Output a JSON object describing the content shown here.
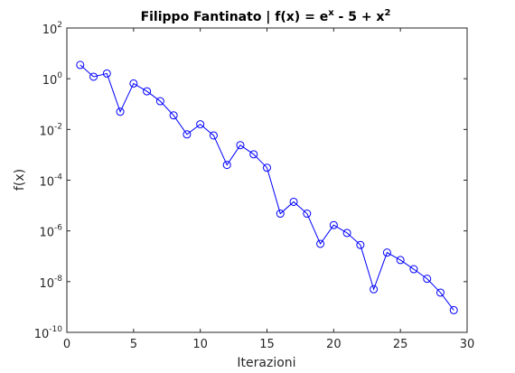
{
  "chart_data": {
    "type": "line",
    "title": {
      "prefix": "Filippo Fantinato | f(x) = e",
      "exp1": "x",
      "middle": " - 5 + x",
      "exp2": "2"
    },
    "xlabel": "Iterazioni",
    "ylabel": "f(x)",
    "xlim": [
      0,
      30
    ],
    "ylim": [
      1e-10,
      100
    ],
    "yscale": "log",
    "grid": false,
    "legend": "none",
    "x_ticks": [
      {
        "value": 0,
        "label": "0"
      },
      {
        "value": 5,
        "label": "5"
      },
      {
        "value": 10,
        "label": "10"
      },
      {
        "value": 15,
        "label": "15"
      },
      {
        "value": 20,
        "label": "20"
      },
      {
        "value": 25,
        "label": "25"
      },
      {
        "value": 30,
        "label": "30"
      }
    ],
    "y_ticks": [
      {
        "value": 100,
        "base": "10",
        "exp": "2"
      },
      {
        "value": 1,
        "base": "10",
        "exp": "0"
      },
      {
        "value": 0.01,
        "base": "10",
        "exp": "-2"
      },
      {
        "value": 0.0001,
        "base": "10",
        "exp": "-4"
      },
      {
        "value": 1e-06,
        "base": "10",
        "exp": "-6"
      },
      {
        "value": 1e-08,
        "base": "10",
        "exp": "-8"
      },
      {
        "value": 1e-10,
        "base": "10",
        "exp": "-10"
      }
    ],
    "series": [
      {
        "color": "#0000ff",
        "marker": "circle",
        "x": [
          1,
          2,
          3,
          4,
          5,
          6,
          7,
          8,
          9,
          10,
          11,
          12,
          13,
          14,
          15,
          16,
          17,
          18,
          19,
          20,
          21,
          22,
          23,
          24,
          25,
          26,
          27,
          28,
          29
        ],
        "y": [
          3.5,
          1.2,
          1.6,
          0.05,
          0.65,
          0.32,
          0.13,
          0.036,
          0.0064,
          0.016,
          0.0058,
          0.0004,
          0.0024,
          0.00105,
          0.00031,
          4.8e-06,
          1.4e-05,
          4.8e-06,
          3.1e-07,
          1.7e-06,
          8.3e-07,
          2.8e-07,
          5e-09,
          1.4e-07,
          7.1e-08,
          3.1e-08,
          1.3e-08,
          3.7e-09,
          7.5e-10
        ]
      }
    ]
  }
}
